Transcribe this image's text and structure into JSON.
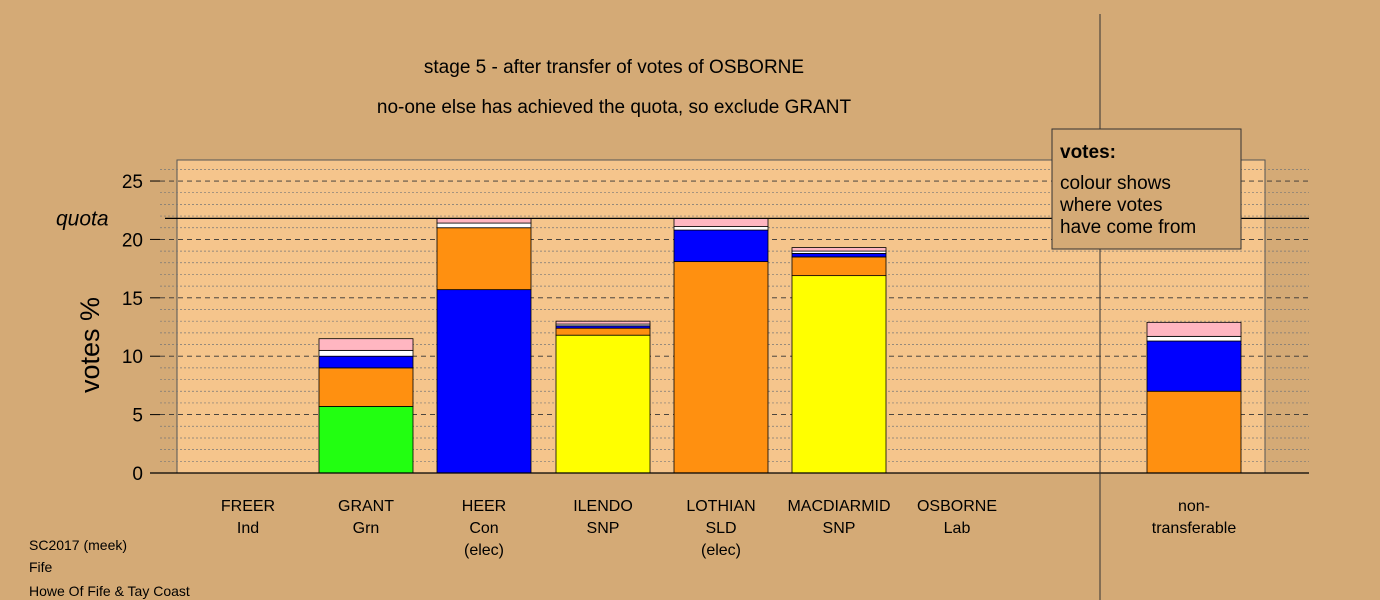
{
  "chart_data": {
    "type": "bar",
    "stacked": true,
    "title": "stage 5 - after transfer of votes of OSBORNE",
    "subtitle": "no-one else has achieved the quota, so exclude GRANT",
    "ylabel": "votes %",
    "ylim": [
      0,
      26.8
    ],
    "yticks": [
      0,
      5,
      10,
      15,
      20,
      25
    ],
    "quota": 21.8,
    "quota_label": "quota",
    "grid": true,
    "legend": {
      "title": "votes:",
      "lines": [
        "colour shows",
        "where votes",
        "have come from"
      ],
      "position": "top-right"
    },
    "categories": [
      {
        "name": "FREER",
        "party": "Ind",
        "note": ""
      },
      {
        "name": "GRANT",
        "party": "Grn",
        "note": ""
      },
      {
        "name": "HEER",
        "party": "Con",
        "note": "(elec)"
      },
      {
        "name": "ILENDO",
        "party": "SNP",
        "note": ""
      },
      {
        "name": "LOTHIAN",
        "party": "SLD",
        "note": "(elec)"
      },
      {
        "name": "MACDIARMID",
        "party": "SNP",
        "note": ""
      },
      {
        "name": "OSBORNE",
        "party": "Lab",
        "note": ""
      },
      {
        "name": "non-",
        "party": "transferable",
        "note": ""
      }
    ],
    "bars": [
      [],
      [
        {
          "value": 5.7,
          "color": "#22ff11"
        },
        {
          "value": 3.3,
          "color": "#ff9010"
        },
        {
          "value": 1.0,
          "color": "#0000ff"
        },
        {
          "value": 0.5,
          "color": "#ffffff"
        },
        {
          "value": 1.0,
          "color": "#ffb6c1"
        }
      ],
      [
        {
          "value": 15.7,
          "color": "#0000ff"
        },
        {
          "value": 5.3,
          "color": "#ff9010"
        },
        {
          "value": 0.4,
          "color": "#ffffff"
        },
        {
          "value": 0.4,
          "color": "#ffb6c1"
        }
      ],
      [
        {
          "value": 11.8,
          "color": "#ffff00"
        },
        {
          "value": 0.6,
          "color": "#ff9010"
        },
        {
          "value": 0.2,
          "color": "#0000ff"
        },
        {
          "value": 0.15,
          "color": "#ffffff"
        },
        {
          "value": 0.25,
          "color": "#ffb6c1"
        }
      ],
      [
        {
          "value": 18.1,
          "color": "#ff9010"
        },
        {
          "value": 2.7,
          "color": "#0000ff"
        },
        {
          "value": 0.3,
          "color": "#ffffff"
        },
        {
          "value": 0.7,
          "color": "#ffb6c1"
        }
      ],
      [
        {
          "value": 16.9,
          "color": "#ffff00"
        },
        {
          "value": 1.6,
          "color": "#ff9010"
        },
        {
          "value": 0.3,
          "color": "#0000ff"
        },
        {
          "value": 0.2,
          "color": "#ffffff"
        },
        {
          "value": 0.3,
          "color": "#ffb6c1"
        }
      ],
      [],
      [
        {
          "value": 7.0,
          "color": "#ff9010"
        },
        {
          "value": 4.3,
          "color": "#0000ff"
        },
        {
          "value": 0.4,
          "color": "#ffffff"
        },
        {
          "value": 1.2,
          "color": "#ffb6c1"
        }
      ]
    ]
  },
  "footer": {
    "line1": "SC2017 (meek)",
    "line2": "Fife",
    "line3": "Howe Of Fife & Tay Coast"
  },
  "colors": {
    "background": "#d4aa76",
    "plot_panel": "#f5c58c"
  }
}
